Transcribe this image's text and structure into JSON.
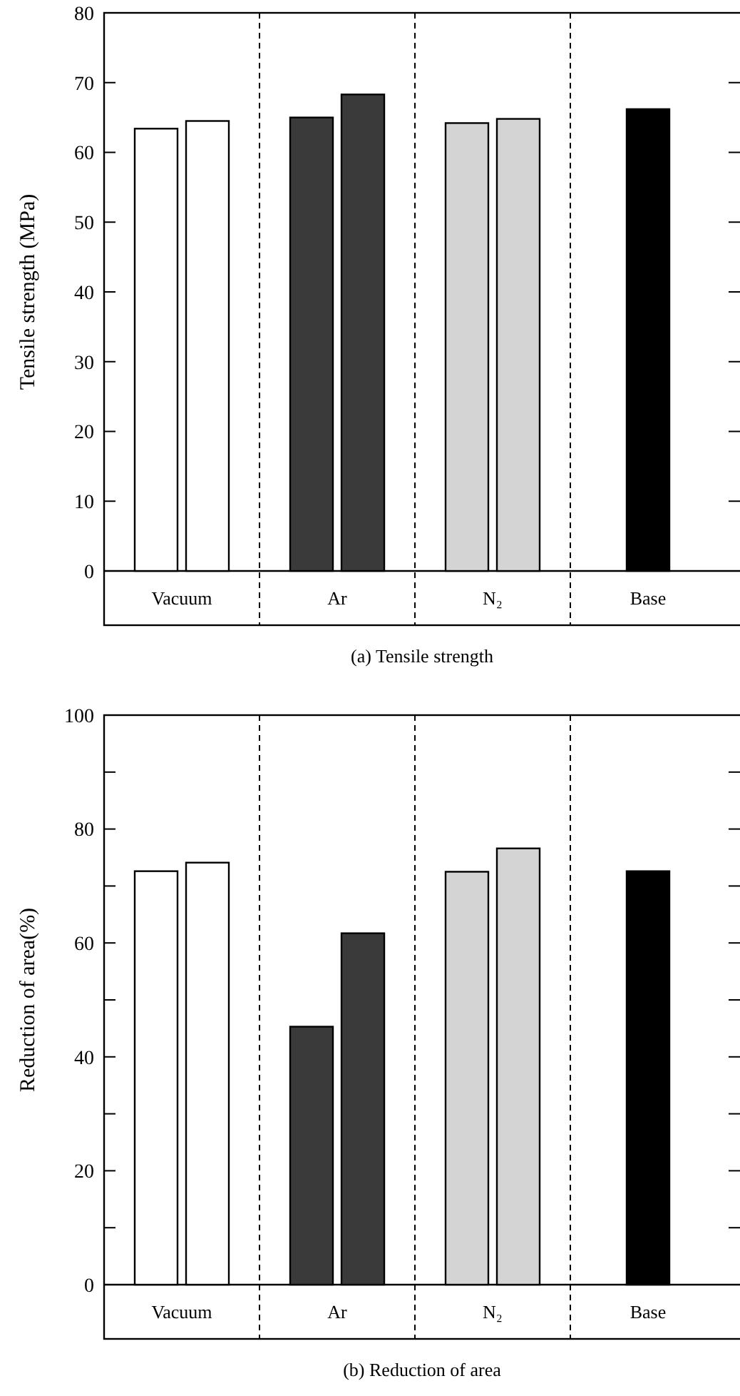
{
  "chart_data": [
    {
      "type": "bar",
      "title": "(a) Tensile strength",
      "ylabel": "Tensile strength (MPa)",
      "categories": [
        "Vacuum",
        "Ar",
        "N₂",
        "Base"
      ],
      "ylim": [
        0,
        80
      ],
      "yticks": [
        0,
        10,
        20,
        30,
        40,
        50,
        60,
        70,
        80
      ],
      "series": [
        {
          "colors": [
            "#ffffff",
            "#3a3a3a",
            "#d4d4d4",
            "#000000"
          ],
          "values": [
            63.4,
            65,
            64.2,
            66.2
          ]
        },
        {
          "colors": [
            "#ffffff",
            "#3a3a3a",
            "#d4d4d4",
            null
          ],
          "values": [
            64.5,
            68.3,
            64.8,
            null
          ]
        }
      ]
    },
    {
      "type": "bar",
      "title": "(b) Reduction of area",
      "ylabel": "Reduction of area(%)",
      "categories": [
        "Vacuum",
        "Ar",
        "N₂",
        "Base"
      ],
      "ylim": [
        0,
        100
      ],
      "yticks": [
        0,
        {
          "value": 10,
          "label": null
        },
        20,
        {
          "value": 30,
          "label": null
        },
        40,
        {
          "value": 50,
          "label": null
        },
        60,
        {
          "value": 70,
          "label": null
        },
        80,
        {
          "value": 90,
          "label": null
        },
        100
      ],
      "series": [
        {
          "colors": [
            "#ffffff",
            "#3a3a3a",
            "#d4d4d4",
            "#000000"
          ],
          "values": [
            72.6,
            45.3,
            72.5,
            72.6
          ]
        },
        {
          "colors": [
            "#ffffff",
            "#3a3a3a",
            "#d4d4d4",
            null
          ],
          "values": [
            74.1,
            61.7,
            76.6,
            null
          ]
        }
      ]
    }
  ]
}
